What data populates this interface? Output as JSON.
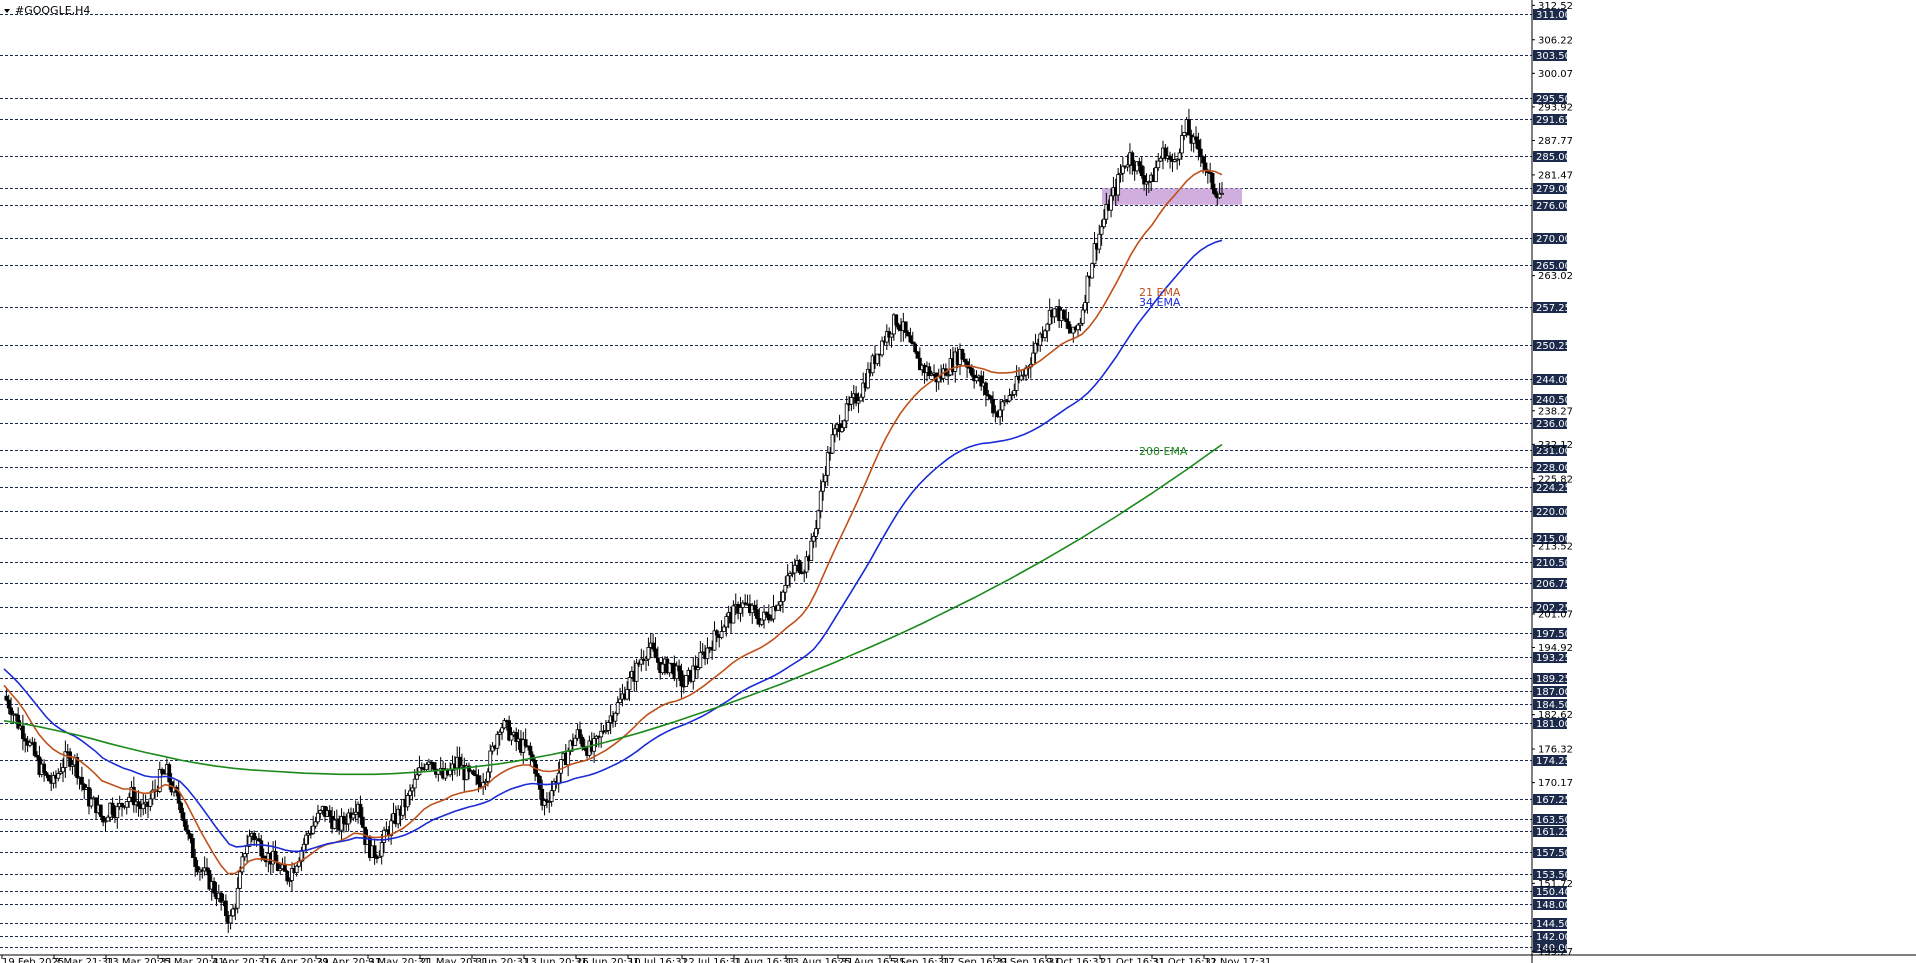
{
  "window": {
    "title": "#GOOGLE,H4"
  },
  "colors": {
    "background": "#ffffff",
    "candle": "#000000",
    "ema21": "#c0501a",
    "ema34": "#1a2bd8",
    "ema200": "#1a8a1a",
    "level_line": "#1c2a4c",
    "price_badge": "#1c2a4c",
    "zone": "#c8a0d8"
  },
  "chart_data": {
    "type": "candlestick",
    "symbol": "#GOOGLE",
    "timeframe": "H4",
    "title": "#GOOGLE,H4",
    "x_tick_labels": [
      "19 Feb 2025",
      "3 Mar 21:31",
      "13 Mar 20:31",
      "25 Mar 20:31",
      "4 Apr 20:31",
      "16 Apr 20:31",
      "29 Apr 20:31",
      "9 May 20:31",
      "21 May 20:31",
      "3 Jun 20:31",
      "13 Jun 20:31",
      "26 Jun 20:31",
      "10 Jul 16:31",
      "22 Jul 16:31",
      "1 Aug 16:31",
      "13 Aug 16:31",
      "25 Aug 16:31",
      "5 Sep 16:31",
      "17 Sep 16:31",
      "29 Sep 16:31",
      "9 Oct 16:31",
      "21 Oct 16:31",
      "31 Oct 16:31",
      "12 Nov 17:31"
    ],
    "y_axis_labels": [
      "312.52",
      "306.22",
      "300.07",
      "293.92",
      "287.77",
      "281.47",
      "263.02",
      "238.27",
      "232.12",
      "225.82",
      "213.52",
      "201.07",
      "194.92",
      "182.62",
      "176.32",
      "170.17",
      "151.72",
      "139.27"
    ],
    "ylim": [
      138.6,
      313.5
    ],
    "horizontal_levels": [
      311.0,
      303.5,
      295.5,
      291.65,
      285.0,
      279.0,
      276.0,
      270.0,
      265.0,
      257.25,
      250.25,
      244.0,
      240.5,
      236.0,
      231.0,
      228.0,
      224.25,
      220.0,
      215.0,
      210.5,
      206.75,
      202.25,
      197.5,
      193.25,
      189.25,
      187.0,
      184.5,
      181.0,
      174.25,
      167.25,
      163.5,
      161.25,
      157.5,
      153.5,
      150.4,
      148.0,
      144.5,
      142.0,
      140.0
    ],
    "level_labels": [
      "311.00",
      "303.50",
      "295.50",
      "291.65",
      "285.00",
      "279.00",
      "276.00",
      "270.00",
      "265.00",
      "257.25",
      "250.25",
      "244.00",
      "240.50",
      "236.00",
      "231.00",
      "228.00",
      "224.25",
      "220.00",
      "215.00",
      "210.50",
      "206.75",
      "202.25",
      "197.50",
      "193.25",
      "189.25",
      "187.00",
      "184.50",
      "181.00",
      "174.25",
      "167.25",
      "163.50",
      "161.25",
      "157.50",
      "153.50",
      "150.40",
      "148.00",
      "144.50",
      "142.00",
      "140.00"
    ],
    "zone": {
      "low": 276.0,
      "high": 279.0,
      "label": ""
    },
    "price_path": [
      186,
      184,
      181,
      179,
      176,
      173,
      171,
      170,
      173,
      175,
      174,
      170,
      167,
      166,
      163,
      166,
      165,
      167,
      168,
      166,
      165,
      168,
      171,
      172,
      168,
      166,
      160,
      156,
      154,
      152,
      150,
      147,
      145,
      150,
      158,
      161,
      159,
      157,
      156,
      154,
      153,
      155,
      158,
      161,
      163,
      165,
      164,
      162,
      163,
      165,
      167,
      160,
      157,
      158,
      161,
      163,
      165,
      167,
      170,
      173,
      175,
      173,
      171,
      172,
      174,
      172,
      171,
      170,
      172,
      176,
      181,
      180,
      178,
      177,
      176,
      173,
      166,
      168,
      171,
      174,
      177,
      179,
      177,
      176,
      178,
      181,
      183,
      185,
      188,
      190,
      193,
      195,
      193,
      191,
      192,
      190,
      188,
      190,
      192,
      194,
      196,
      198,
      200,
      201,
      203,
      202,
      201,
      200,
      201,
      203,
      205,
      208,
      210,
      210,
      213,
      220,
      228,
      233,
      236,
      238,
      240,
      242,
      245,
      248,
      251,
      253,
      255,
      253,
      250,
      247,
      246,
      245,
      244,
      246,
      247,
      249,
      247,
      245,
      243,
      241,
      238,
      239,
      241,
      243,
      245,
      248,
      251,
      254,
      257,
      256,
      254,
      252,
      255,
      262,
      268,
      272,
      276,
      279,
      283,
      285,
      283,
      281,
      280,
      284,
      286,
      283,
      287,
      290,
      287,
      286,
      281,
      279,
      278
    ],
    "series": [
      {
        "name": "21 EMA",
        "color": "#c0501a",
        "values": [
          188,
          186.5,
          185,
          183.2,
          181,
          179,
          177.5,
          176.3,
          175.5,
          175,
          174.8,
          174,
          173,
          171.8,
          170.5,
          170,
          169.5,
          169,
          169,
          168.5,
          168.2,
          168.3,
          169,
          169.8,
          169.5,
          168.6,
          166.5,
          164,
          161.5,
          159.2,
          157,
          155,
          153.5,
          153.5,
          154.5,
          155.8,
          156.2,
          156.2,
          156,
          155.6,
          155.2,
          155.1,
          155.6,
          156.3,
          157.2,
          158.2,
          158.8,
          159.1,
          159.5,
          160.1,
          160.9,
          160.8,
          160.3,
          160.1,
          160.2,
          160.5,
          161.1,
          161.8,
          162.8,
          164,
          165.3,
          166.1,
          166.6,
          167.1,
          167.8,
          168.2,
          168.5,
          168.7,
          169.1,
          169.8,
          171,
          171.9,
          172.6,
          173.1,
          173.4,
          173.4,
          172.7,
          172.3,
          172.2,
          172.4,
          172.9,
          173.5,
          173.9,
          174.2,
          174.7,
          175.4,
          176.1,
          177,
          178,
          179.1,
          180.3,
          181.6,
          182.7,
          183.5,
          184.3,
          184.8,
          185.1,
          185.6,
          186.2,
          187,
          187.9,
          188.9,
          189.9,
          190.9,
          192,
          192.9,
          193.6,
          194.2,
          194.8,
          195.6,
          196.5,
          197.6,
          198.7,
          199.7,
          200.9,
          202.6,
          205.1,
          208,
          210.9,
          213.7,
          216.4,
          219.1,
          221.9,
          224.8,
          227.8,
          230.7,
          233.3,
          235.6,
          237.7,
          239.4,
          240.9,
          242.2,
          243.2,
          244.1,
          245,
          245.8,
          246.3,
          246.5,
          246.5,
          246.2,
          245.9,
          245.4,
          245.2,
          245.2,
          245.3,
          245.6,
          246,
          246.6,
          247.4,
          248.4,
          249.4,
          250.4,
          251.1,
          251.6,
          252.3,
          253.6,
          255.3,
          257.3,
          259.6,
          261.9,
          264.4,
          266.9,
          269,
          270.8,
          272.3,
          274.2,
          276,
          277.4,
          278.9,
          280.4,
          281.5,
          282.2,
          282.3,
          282.1,
          281.5
        ]
      },
      {
        "name": "34 EMA",
        "color": "#1a2bd8",
        "values": [
          191,
          189.8,
          188.5,
          187,
          185.4,
          183.8,
          182.2,
          180.9,
          180,
          179.3,
          178.7,
          177.9,
          176.9,
          175.9,
          174.7,
          174,
          173.4,
          172.8,
          172.4,
          171.9,
          171.4,
          171.2,
          171.2,
          171.3,
          171,
          170.4,
          169.1,
          167.5,
          165.8,
          164,
          162.2,
          160.5,
          158.9,
          158.4,
          158.5,
          158.8,
          158.8,
          158.7,
          158.5,
          158.2,
          157.8,
          157.6,
          157.6,
          157.8,
          158.2,
          158.6,
          159,
          159.2,
          159.4,
          159.7,
          160.1,
          160,
          159.8,
          159.7,
          159.7,
          159.9,
          160.2,
          160.6,
          161.2,
          161.9,
          162.7,
          163.4,
          163.9,
          164.4,
          164.9,
          165.3,
          165.7,
          166,
          166.4,
          166.9,
          167.7,
          168.4,
          169,
          169.4,
          169.8,
          170,
          169.9,
          169.8,
          169.9,
          170.1,
          170.4,
          170.9,
          171.2,
          171.5,
          171.9,
          172.4,
          173,
          173.6,
          174.3,
          175.1,
          176,
          177,
          177.9,
          178.7,
          179.4,
          180,
          180.5,
          181,
          181.6,
          182.2,
          182.9,
          183.7,
          184.5,
          185.3,
          186.2,
          187,
          187.7,
          188.3,
          188.9,
          189.5,
          190.2,
          191,
          191.8,
          192.6,
          193.5,
          194.6,
          196.2,
          198.1,
          200.2,
          202.3,
          204.4,
          206.5,
          208.6,
          210.8,
          213.1,
          215.4,
          217.6,
          219.7,
          221.6,
          223.3,
          224.8,
          226.1,
          227.3,
          228.4,
          229.4,
          230.3,
          231,
          231.6,
          232,
          232.3,
          232.4,
          232.6,
          232.8,
          233.1,
          233.5,
          234,
          234.6,
          235.3,
          236.1,
          237,
          237.9,
          238.8,
          239.6,
          240.5,
          241.6,
          243,
          244.6,
          246.4,
          248.2,
          250.2,
          252.2,
          254.1,
          255.8,
          257.4,
          259.1,
          260.7,
          262.2,
          263.7,
          265.2,
          266.6,
          267.7,
          268.5,
          269.1,
          269.5
        ]
      },
      {
        "name": "200 EMA",
        "color": "#1a8a1a",
        "values": [
          181.5,
          181,
          180.4,
          179.7,
          179,
          178.2,
          177.3,
          176.5,
          175.7,
          175,
          174.3,
          173.7,
          173.2,
          172.8,
          172.5,
          172.3,
          172.1,
          171.9,
          171.8,
          171.7,
          171.7,
          171.7,
          171.8,
          172,
          172.2,
          172.5,
          172.8,
          173.2,
          173.6,
          174.1,
          174.7,
          175.3,
          176,
          176.7,
          177.5,
          178.4,
          179.3,
          180.3,
          181.3,
          182.4,
          183.5,
          184.6,
          185.8,
          187,
          188.2,
          189.5,
          190.8,
          192.1,
          193.5,
          194.9,
          196.3,
          197.8,
          199.3,
          200.9,
          202.5,
          204.1,
          205.8,
          207.5,
          209.3,
          211.1,
          213,
          214.9,
          216.9,
          218.9,
          221,
          223.1,
          225.3,
          227.5,
          229.8,
          232.1
        ]
      },
      {
        "name": "",
        "color": "#000000",
        "values": []
      }
    ],
    "annotations": [
      "21 EMA",
      "34 EMA",
      "200 EMA"
    ]
  }
}
